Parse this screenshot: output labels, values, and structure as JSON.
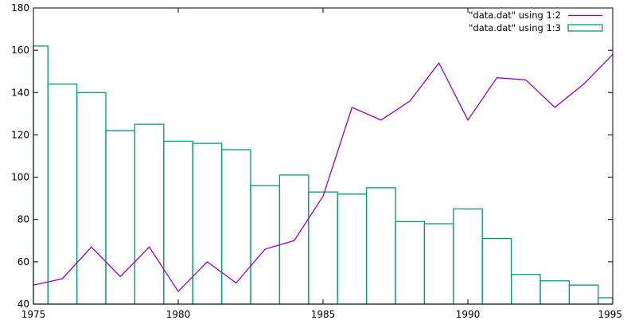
{
  "chart_data": {
    "type": "bar",
    "x_ticks": [
      "1975",
      "1980",
      "1985",
      "1990",
      "1995"
    ],
    "y_ticks": [
      "40",
      "60",
      "80",
      "100",
      "120",
      "140",
      "160",
      "180"
    ],
    "xlim": [
      1975,
      1995
    ],
    "ylim": [
      40,
      180
    ],
    "grid": false,
    "legend_position": "top-right",
    "series": [
      {
        "name": "\"data.dat\" using 1:2",
        "style": "line",
        "color": "#9400d3",
        "x": [
          1975,
          1976,
          1977,
          1978,
          1979,
          1980,
          1981,
          1982,
          1983,
          1984,
          1985,
          1986,
          1987,
          1988,
          1989,
          1990,
          1991,
          1992,
          1993,
          1994,
          1995
        ],
        "values": [
          49,
          52,
          67,
          53,
          67,
          46,
          60,
          50,
          66,
          70,
          91,
          133,
          127,
          136,
          154,
          127,
          147,
          146,
          133,
          144,
          158
        ]
      },
      {
        "name": "\"data.dat\" using 1:3",
        "style": "bars",
        "color": "#009e73",
        "x": [
          1975,
          1976,
          1977,
          1978,
          1979,
          1980,
          1981,
          1982,
          1983,
          1984,
          1985,
          1986,
          1987,
          1988,
          1989,
          1990,
          1991,
          1992,
          1993,
          1994,
          1995
        ],
        "values": [
          162,
          144,
          140,
          122,
          125,
          117,
          116,
          113,
          96,
          101,
          93,
          92,
          95,
          79,
          78,
          85,
          71,
          54,
          51,
          49,
          43
        ]
      }
    ]
  }
}
